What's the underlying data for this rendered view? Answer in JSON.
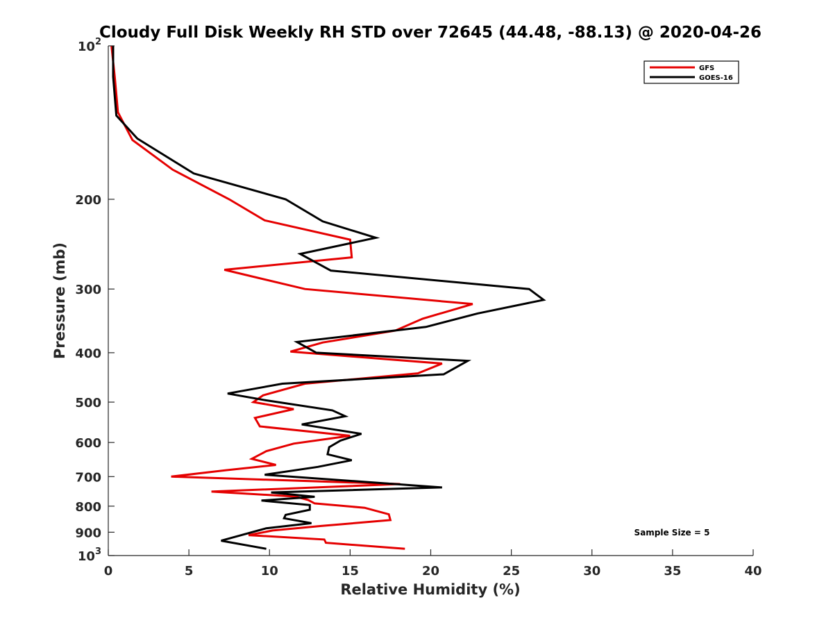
{
  "chart_data": {
    "type": "line",
    "title": "Cloudy Full Disk Weekly RH STD over 72645 (44.48, -88.13) @ 2020-04-26",
    "xlabel": "Relative Humidity (%)",
    "ylabel": "Pressure (mb)",
    "xlim": [
      0,
      40
    ],
    "ylim": [
      100,
      1000
    ],
    "yscale": "log",
    "y_reversed": true,
    "grid": false,
    "legend_position": "top-right",
    "x_ticks": [
      0,
      5,
      10,
      15,
      20,
      25,
      30,
      35,
      40
    ],
    "x_tick_labels": [
      "0",
      "5",
      "10",
      "15",
      "20",
      "25",
      "30",
      "35",
      "40"
    ],
    "y_ticks": [
      100,
      200,
      300,
      400,
      500,
      600,
      700,
      800,
      900,
      1000
    ],
    "y_tick_labels": [
      {
        "base": "10",
        "exp": "2"
      },
      {
        "base": "200",
        "exp": ""
      },
      {
        "base": "300",
        "exp": ""
      },
      {
        "base": "400",
        "exp": ""
      },
      {
        "base": "500",
        "exp": ""
      },
      {
        "base": "600",
        "exp": ""
      },
      {
        "base": "700",
        "exp": ""
      },
      {
        "base": "800",
        "exp": ""
      },
      {
        "base": "900",
        "exp": ""
      },
      {
        "base": "10",
        "exp": "3"
      }
    ],
    "annotation": "Sample Size = 5",
    "series": [
      {
        "name": "GFS",
        "color": "#e50000",
        "points": [
          [
            0.2,
            100
          ],
          [
            0.4,
            115
          ],
          [
            0.6,
            135
          ],
          [
            1.5,
            153
          ],
          [
            4.0,
            175
          ],
          [
            7.5,
            200
          ],
          [
            9.7,
            220
          ],
          [
            15.0,
            240
          ],
          [
            15.1,
            260
          ],
          [
            7.2,
            275
          ],
          [
            12.2,
            300
          ],
          [
            22.6,
            321
          ],
          [
            19.5,
            343
          ],
          [
            17.8,
            362
          ],
          [
            13.3,
            382
          ],
          [
            11.3,
            398
          ],
          [
            20.7,
            420
          ],
          [
            19.2,
            439
          ],
          [
            12.2,
            460
          ],
          [
            9.6,
            485
          ],
          [
            9.0,
            500
          ],
          [
            11.5,
            516
          ],
          [
            9.1,
            537
          ],
          [
            9.4,
            558
          ],
          [
            15.0,
            582
          ],
          [
            11.5,
            603
          ],
          [
            9.8,
            624
          ],
          [
            8.9,
            646
          ],
          [
            10.4,
            664
          ],
          [
            7.3,
            680
          ],
          [
            3.9,
            700
          ],
          [
            18.1,
            724
          ],
          [
            6.4,
            749
          ],
          [
            11.6,
            766
          ],
          [
            12.4,
            778
          ],
          [
            12.8,
            790
          ],
          [
            15.9,
            806
          ],
          [
            17.4,
            830
          ],
          [
            17.5,
            852
          ],
          [
            13.2,
            875
          ],
          [
            10.2,
            893
          ],
          [
            8.7,
            912
          ],
          [
            13.4,
            930
          ],
          [
            13.5,
            944
          ],
          [
            18.4,
            970
          ]
        ]
      },
      {
        "name": "GOES-16",
        "color": "#000000",
        "points": [
          [
            0.3,
            100
          ],
          [
            0.3,
            115
          ],
          [
            0.5,
            137
          ],
          [
            1.8,
            152
          ],
          [
            5.3,
            178
          ],
          [
            11.0,
            200
          ],
          [
            13.3,
            221
          ],
          [
            16.6,
            238
          ],
          [
            11.9,
            256
          ],
          [
            13.8,
            276
          ],
          [
            26.1,
            300
          ],
          [
            27.0,
            315
          ],
          [
            22.9,
            335
          ],
          [
            19.7,
            356
          ],
          [
            11.7,
            381
          ],
          [
            12.9,
            400
          ],
          [
            22.3,
            415
          ],
          [
            20.8,
            441
          ],
          [
            10.8,
            460
          ],
          [
            7.4,
            481
          ],
          [
            9.8,
            496
          ],
          [
            13.9,
            519
          ],
          [
            14.7,
            533
          ],
          [
            12.0,
            553
          ],
          [
            15.7,
            577
          ],
          [
            14.4,
            595
          ],
          [
            13.7,
            613
          ],
          [
            13.6,
            633
          ],
          [
            15.1,
            650
          ],
          [
            13.0,
            670
          ],
          [
            9.7,
            694
          ],
          [
            20.7,
            735
          ],
          [
            10.1,
            752
          ],
          [
            12.8,
            767
          ],
          [
            9.5,
            780
          ],
          [
            12.5,
            796
          ],
          [
            12.5,
            813
          ],
          [
            11.0,
            832
          ],
          [
            10.9,
            845
          ],
          [
            12.6,
            864
          ],
          [
            9.8,
            884
          ],
          [
            8.9,
            900
          ],
          [
            7.0,
            935
          ],
          [
            9.8,
            970
          ]
        ]
      }
    ]
  }
}
